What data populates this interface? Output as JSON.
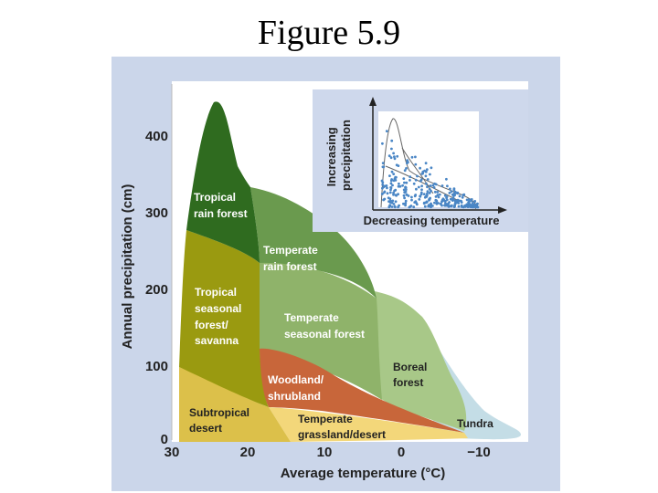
{
  "page_title": "Figure 5.9",
  "chart_data": {
    "type": "area",
    "xlabel": "Average temperature (°C)",
    "ylabel": "Annual precipitation (cm)",
    "x_ticks": [
      "30",
      "20",
      "10",
      "0",
      "−10"
    ],
    "y_ticks": [
      "0",
      "100",
      "200",
      "300",
      "400"
    ],
    "xlim": [
      30,
      -15
    ],
    "ylim": [
      0,
      450
    ],
    "biomes": [
      {
        "name": "Tropical rain forest",
        "lines": [
          "Tropical",
          "rain forest"
        ],
        "color": "#2f6b1f",
        "text_color": "#ffffff"
      },
      {
        "name": "Temperate rain forest",
        "lines": [
          "Temperate",
          "rain forest"
        ],
        "color": "#6a9a4e",
        "text_color": "#ffffff"
      },
      {
        "name": "Tropical seasonal forest/savanna",
        "lines": [
          "Tropical",
          "seasonal",
          "forest/",
          "savanna"
        ],
        "color": "#9a9a10",
        "text_color": "#ffffff"
      },
      {
        "name": "Temperate seasonal forest",
        "lines": [
          "Temperate",
          "seasonal forest"
        ],
        "color": "#8fb36a",
        "text_color": "#ffffff"
      },
      {
        "name": "Woodland/shrubland",
        "lines": [
          "Woodland/",
          "shrubland"
        ],
        "color": "#c8663a",
        "text_color": "#ffffff"
      },
      {
        "name": "Boreal forest",
        "lines": [
          "Boreal",
          "forest"
        ],
        "color": "#a8c888",
        "text_color": "#222222"
      },
      {
        "name": "Subtropical desert",
        "lines": [
          "Subtropical",
          "desert"
        ],
        "color": "#dcc04a",
        "text_color": "#222222"
      },
      {
        "name": "Temperate grassland/desert",
        "lines": [
          "Temperate",
          "grassland/desert"
        ],
        "color": "#f3d77a",
        "text_color": "#222222"
      },
      {
        "name": "Tundra",
        "lines": [
          "Tundra"
        ],
        "color": "#c4dde6",
        "text_color": "#222222"
      }
    ],
    "inset": {
      "ylabel_lines": [
        "Increasing",
        "precipitation"
      ],
      "xlabel": "Decreasing temperature"
    }
  }
}
